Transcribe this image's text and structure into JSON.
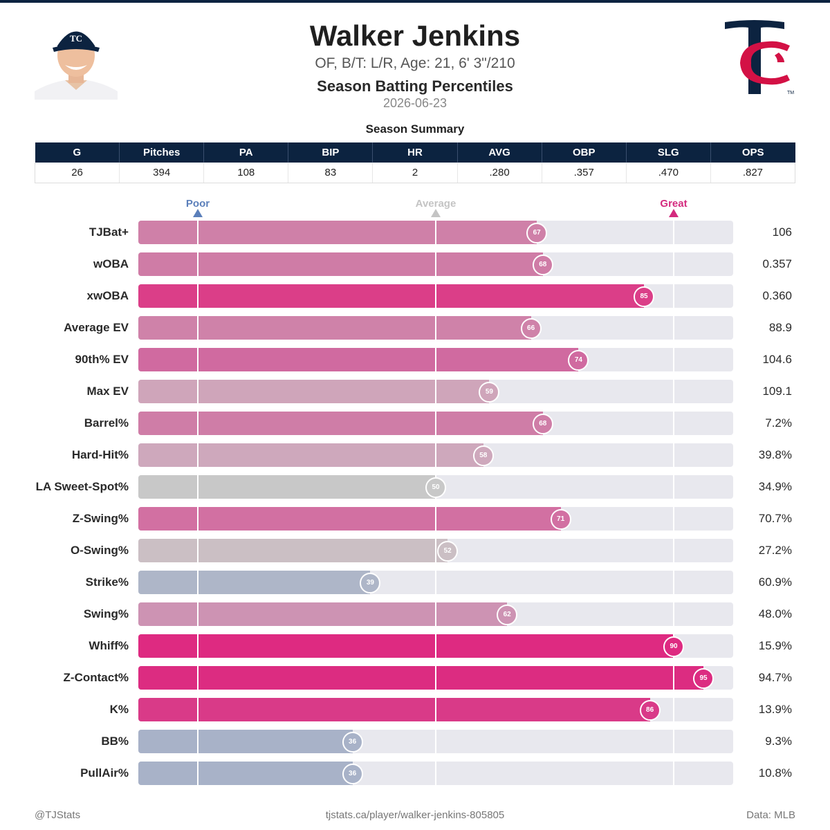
{
  "header": {
    "title": "Walker Jenkins",
    "subtitle": "OF, B/T: L/R, Age: 21, 6' 3\"/210",
    "section": "Season Batting Percentiles",
    "date": "2026-06-23"
  },
  "summary": {
    "title": "Season Summary",
    "headers": [
      "G",
      "Pitches",
      "PA",
      "BIP",
      "HR",
      "AVG",
      "OBP",
      "SLG",
      "OPS"
    ],
    "values": [
      "26",
      "394",
      "108",
      "83",
      "2",
      ".280",
      ".357",
      ".470",
      ".827"
    ]
  },
  "legend": {
    "poor": "Poor",
    "average": "Average",
    "great": "Great",
    "poor_color": "#5b7fba",
    "average_color": "#c4c4c4",
    "great_color": "#d42a7e"
  },
  "chart_data": {
    "type": "bar",
    "orientation": "horizontal",
    "xlim": [
      0,
      100
    ],
    "reference_percentiles": [
      10,
      50,
      90
    ],
    "categories": [
      "TJBat+",
      "wOBA",
      "xwOBA",
      "Average EV",
      "90th% EV",
      "Max EV",
      "Barrel%",
      "Hard-Hit%",
      "LA Sweet-Spot%",
      "Z-Swing%",
      "O-Swing%",
      "Strike%",
      "Swing%",
      "Whiff%",
      "Z-Contact%",
      "K%",
      "BB%",
      "PullAir%"
    ],
    "percentiles": [
      67,
      68,
      85,
      66,
      74,
      59,
      68,
      58,
      50,
      71,
      52,
      39,
      62,
      90,
      95,
      86,
      36,
      36
    ],
    "stat_values": [
      "106",
      "0.357",
      "0.360",
      "88.9",
      "104.6",
      "109.1",
      "7.2%",
      "39.8%",
      "34.9%",
      "70.7%",
      "27.2%",
      "60.9%",
      "48.0%",
      "15.9%",
      "94.7%",
      "13.9%",
      "9.3%",
      "10.8%"
    ],
    "colors": [
      "#cf80a8",
      "#cf7ca6",
      "#db3e88",
      "#cf82a9",
      "#d06aa0",
      "#cfa5ba",
      "#cf7da7",
      "#cea8bc",
      "#c8c8c8",
      "#d270a2",
      "#cbbfc4",
      "#aeb6c8",
      "#cd93b3",
      "#de2a81",
      "#dc2c81",
      "#d93a88",
      "#a8b2c8",
      "#a8b2c8"
    ]
  },
  "footer": {
    "left": "@TJStats",
    "center": "tjstats.ca/player/walker-jenkins-805805",
    "right": "Data: MLB"
  }
}
